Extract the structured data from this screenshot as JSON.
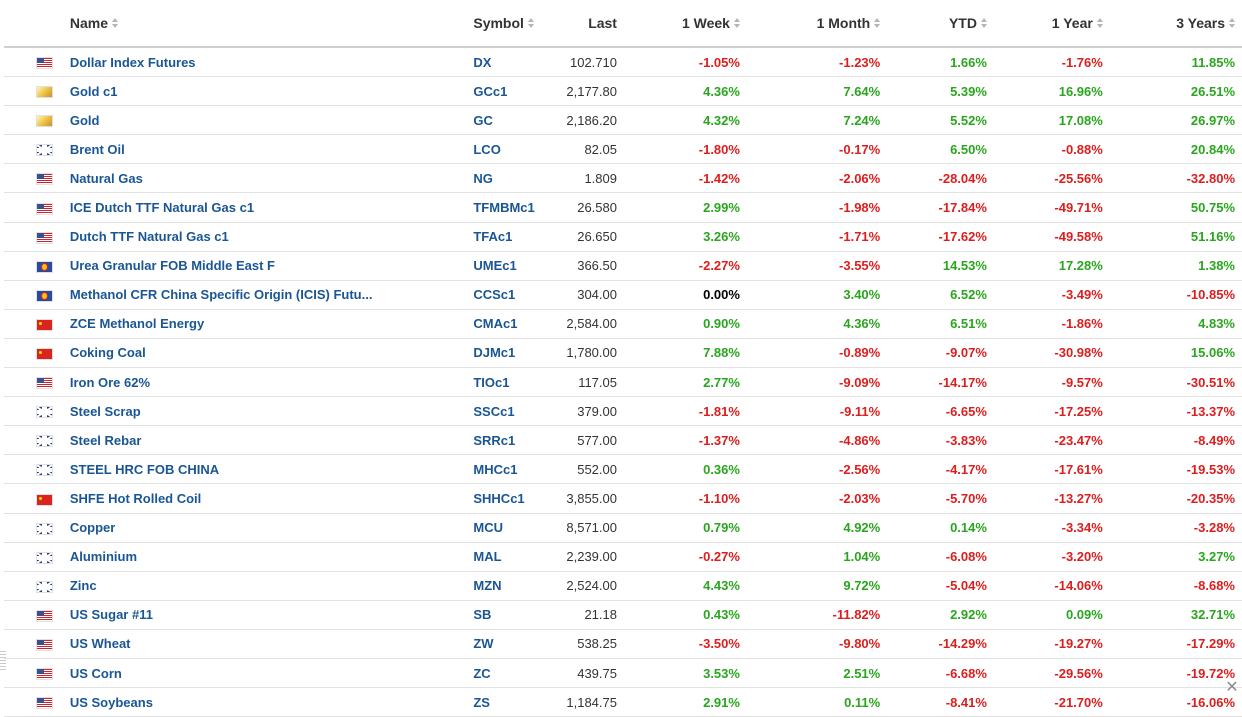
{
  "columns": {
    "name": "Name",
    "symbol": "Symbol",
    "last": "Last",
    "week": "1 Week",
    "month": "1 Month",
    "ytd": "YTD",
    "year": "1 Year",
    "three_years": "3 Years"
  },
  "rows": [
    {
      "flag": "us-flag-icon",
      "name": "Dollar Index Futures",
      "symbol": "DX",
      "last": "102.710",
      "week": "-1.05%",
      "month": "-1.23%",
      "ytd": "1.66%",
      "year": "-1.76%",
      "three_years": "11.85%"
    },
    {
      "flag": "gold-icon",
      "name": "Gold c1",
      "symbol": "GCc1",
      "last": "2,177.80",
      "week": "4.36%",
      "month": "7.64%",
      "ytd": "5.39%",
      "year": "16.96%",
      "three_years": "26.51%"
    },
    {
      "flag": "gold-icon",
      "name": "Gold",
      "symbol": "GC",
      "last": "2,186.20",
      "week": "4.32%",
      "month": "7.24%",
      "ytd": "5.52%",
      "year": "17.08%",
      "three_years": "26.97%"
    },
    {
      "flag": "uk-flag-icon",
      "name": "Brent Oil",
      "symbol": "LCO",
      "last": "82.05",
      "week": "-1.80%",
      "month": "-0.17%",
      "ytd": "6.50%",
      "year": "-0.88%",
      "three_years": "20.84%"
    },
    {
      "flag": "us-flag-icon",
      "name": "Natural Gas",
      "symbol": "NG",
      "last": "1.809",
      "week": "-1.42%",
      "month": "-2.06%",
      "ytd": "-28.04%",
      "year": "-25.56%",
      "three_years": "-32.80%"
    },
    {
      "flag": "us-flag-icon",
      "name": "ICE Dutch TTF Natural Gas c1",
      "symbol": "TFMBMc1",
      "last": "26.580",
      "week": "2.99%",
      "month": "-1.98%",
      "ytd": "-17.84%",
      "year": "-49.71%",
      "three_years": "50.75%"
    },
    {
      "flag": "us-flag-icon",
      "name": "Dutch TTF Natural Gas c1",
      "symbol": "TFAc1",
      "last": "26.650",
      "week": "3.26%",
      "month": "-1.71%",
      "ytd": "-17.62%",
      "year": "-49.58%",
      "three_years": "51.16%"
    },
    {
      "flag": "asean-flag-icon",
      "name": "Urea Granular FOB Middle East F",
      "symbol": "UMEc1",
      "last": "366.50",
      "week": "-2.27%",
      "month": "-3.55%",
      "ytd": "14.53%",
      "year": "17.28%",
      "three_years": "1.38%"
    },
    {
      "flag": "asean-flag-icon",
      "name": "Methanol CFR China Specific Origin (ICIS) Futu...",
      "symbol": "CCSc1",
      "last": "304.00",
      "week": "0.00%",
      "month": "3.40%",
      "ytd": "6.52%",
      "year": "-3.49%",
      "three_years": "-10.85%"
    },
    {
      "flag": "cn-flag-icon",
      "name": "ZCE Methanol Energy",
      "symbol": "CMAc1",
      "last": "2,584.00",
      "week": "0.90%",
      "month": "4.36%",
      "ytd": "6.51%",
      "year": "-1.86%",
      "three_years": "4.83%"
    },
    {
      "flag": "cn-flag-icon",
      "name": "Coking Coal",
      "symbol": "DJMc1",
      "last": "1,780.00",
      "week": "7.88%",
      "month": "-0.89%",
      "ytd": "-9.07%",
      "year": "-30.98%",
      "three_years": "15.06%"
    },
    {
      "flag": "us-flag-icon",
      "name": "Iron Ore 62%",
      "symbol": "TIOc1",
      "last": "117.05",
      "week": "2.77%",
      "month": "-9.09%",
      "ytd": "-14.17%",
      "year": "-9.57%",
      "three_years": "-30.51%"
    },
    {
      "flag": "uk-flag-icon",
      "name": "Steel Scrap",
      "symbol": "SSCc1",
      "last": "379.00",
      "week": "-1.81%",
      "month": "-9.11%",
      "ytd": "-6.65%",
      "year": "-17.25%",
      "three_years": "-13.37%"
    },
    {
      "flag": "uk-flag-icon",
      "name": "Steel Rebar",
      "symbol": "SRRc1",
      "last": "577.00",
      "week": "-1.37%",
      "month": "-4.86%",
      "ytd": "-3.83%",
      "year": "-23.47%",
      "three_years": "-8.49%"
    },
    {
      "flag": "uk-flag-icon",
      "name": "STEEL HRC FOB CHINA",
      "symbol": "MHCc1",
      "last": "552.00",
      "week": "0.36%",
      "month": "-2.56%",
      "ytd": "-4.17%",
      "year": "-17.61%",
      "three_years": "-19.53%"
    },
    {
      "flag": "cn-flag-icon",
      "name": "SHFE Hot Rolled Coil",
      "symbol": "SHHCc1",
      "last": "3,855.00",
      "week": "-1.10%",
      "month": "-2.03%",
      "ytd": "-5.70%",
      "year": "-13.27%",
      "three_years": "-20.35%"
    },
    {
      "flag": "uk-flag-icon",
      "name": "Copper",
      "symbol": "MCU",
      "last": "8,571.00",
      "week": "0.79%",
      "month": "4.92%",
      "ytd": "0.14%",
      "year": "-3.34%",
      "three_years": "-3.28%"
    },
    {
      "flag": "uk-flag-icon",
      "name": "Aluminium",
      "symbol": "MAL",
      "last": "2,239.00",
      "week": "-0.27%",
      "month": "1.04%",
      "ytd": "-6.08%",
      "year": "-3.20%",
      "three_years": "3.27%"
    },
    {
      "flag": "uk-flag-icon",
      "name": "Zinc",
      "symbol": "MZN",
      "last": "2,524.00",
      "week": "4.43%",
      "month": "9.72%",
      "ytd": "-5.04%",
      "year": "-14.06%",
      "three_years": "-8.68%"
    },
    {
      "flag": "us-flag-icon",
      "name": "US Sugar #11",
      "symbol": "SB",
      "last": "21.18",
      "week": "0.43%",
      "month": "-11.82%",
      "ytd": "2.92%",
      "year": "0.09%",
      "three_years": "32.71%"
    },
    {
      "flag": "us-flag-icon",
      "name": "US Wheat",
      "symbol": "ZW",
      "last": "538.25",
      "week": "-3.50%",
      "month": "-9.80%",
      "ytd": "-14.29%",
      "year": "-19.27%",
      "three_years": "-17.29%"
    },
    {
      "flag": "us-flag-icon",
      "name": "US Corn",
      "symbol": "ZC",
      "last": "439.75",
      "week": "3.53%",
      "month": "2.51%",
      "ytd": "-6.68%",
      "year": "-29.56%",
      "three_years": "-19.72%"
    },
    {
      "flag": "us-flag-icon",
      "name": "US Soybeans",
      "symbol": "ZS",
      "last": "1,184.75",
      "week": "2.91%",
      "month": "0.11%",
      "ytd": "-8.41%",
      "year": "-21.70%",
      "three_years": "-16.06%"
    }
  ],
  "colors": {
    "positive": "#2aa61e",
    "negative": "#dc1e1e",
    "link": "#1a5694"
  },
  "icons": {
    "close": "close-icon",
    "sort": "sort-arrows-icon"
  }
}
